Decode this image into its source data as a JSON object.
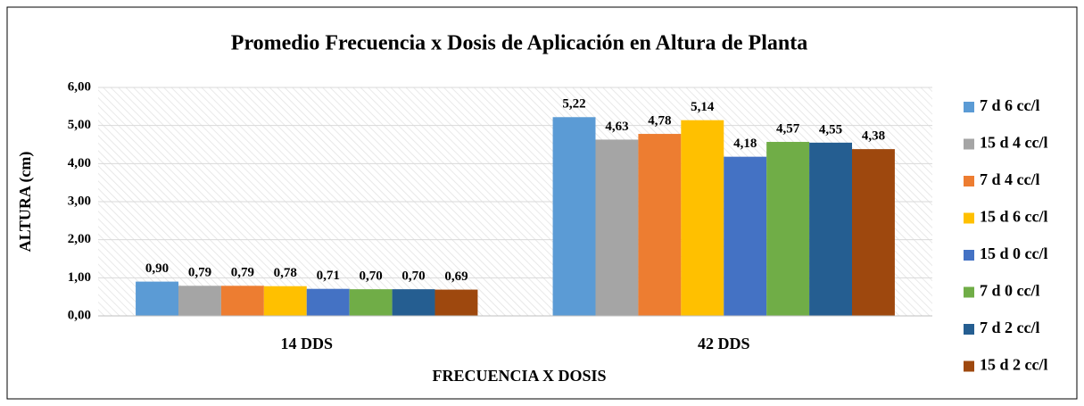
{
  "chart_data": {
    "type": "bar",
    "title": "Promedio Frecuencia x Dosis de Aplicación en Altura de Planta",
    "x_label": "FRECUENCIA X DOSIS",
    "y_label": "ALTURA (cm)",
    "categories": [
      "14 DDS",
      "42 DDS"
    ],
    "series": [
      {
        "name": "7 d 6 cc/l",
        "color": "#5b9bd5",
        "values": [
          0.9,
          5.22
        ],
        "value_labels": [
          "0,90",
          "5,22"
        ]
      },
      {
        "name": "15 d 4 cc/l",
        "color": "#a5a5a5",
        "values": [
          0.79,
          4.63
        ],
        "value_labels": [
          "0,79",
          "4,63"
        ]
      },
      {
        "name": "7 d 4 cc/l",
        "color": "#ed7d31",
        "values": [
          0.79,
          4.78
        ],
        "value_labels": [
          "0,79",
          "4,78"
        ]
      },
      {
        "name": "15 d 6 cc/l",
        "color": "#ffc000",
        "values": [
          0.78,
          5.14
        ],
        "value_labels": [
          "0,78",
          "5,14"
        ]
      },
      {
        "name": "15 d 0 cc/l",
        "color": "#4472c4",
        "values": [
          0.71,
          4.18
        ],
        "value_labels": [
          "0,71",
          "4,18"
        ]
      },
      {
        "name": "7 d 0 cc/l",
        "color": "#70ad47",
        "values": [
          0.7,
          4.57
        ],
        "value_labels": [
          "0,70",
          "4,57"
        ]
      },
      {
        "name": "7 d 2 cc/l",
        "color": "#255e91",
        "values": [
          0.7,
          4.55
        ],
        "value_labels": [
          "0,70",
          "4,55"
        ]
      },
      {
        "name": "15 d 2 cc/l",
        "color": "#9e480e",
        "values": [
          0.69,
          4.38
        ],
        "value_labels": [
          "0,69",
          "4,38"
        ]
      }
    ],
    "ylim": [
      0,
      6
    ],
    "yticks": [
      {
        "value": 0,
        "label": "0,00"
      },
      {
        "value": 1,
        "label": "1,00"
      },
      {
        "value": 2,
        "label": "2,00"
      },
      {
        "value": 3,
        "label": "3,00"
      },
      {
        "value": 4,
        "label": "4,00"
      },
      {
        "value": 5,
        "label": "5,00"
      },
      {
        "value": 6,
        "label": "6,00"
      }
    ],
    "grid": true,
    "legend": "right"
  }
}
